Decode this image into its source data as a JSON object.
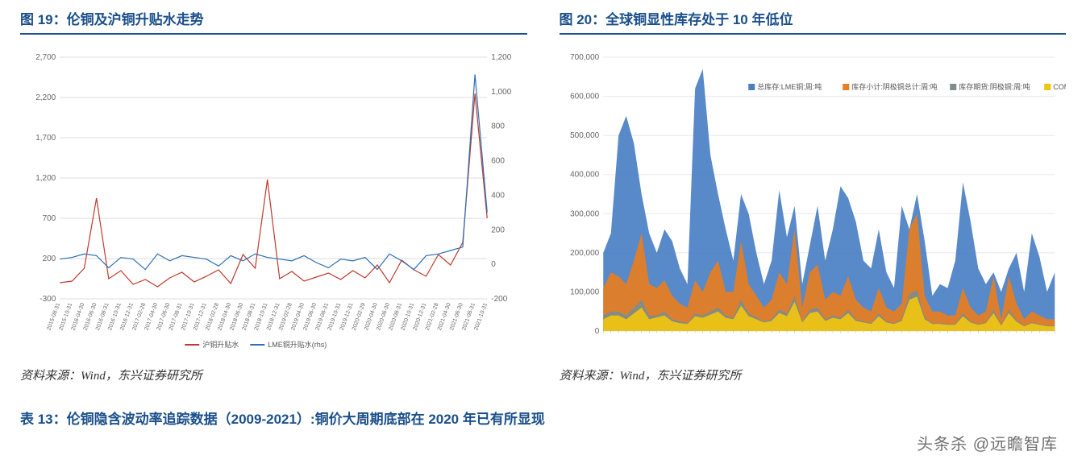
{
  "fig19": {
    "title": "图 19：伦铜及沪铜升贴水走势",
    "source": "资料来源：Wind，东兴证券研究所",
    "type": "line",
    "left_axis": {
      "min": -300,
      "max": 2700,
      "ticks": [
        -300,
        200,
        700,
        1200,
        1700,
        2200,
        2700
      ],
      "color": "#666666"
    },
    "right_axis": {
      "min": -200,
      "max": 1200,
      "ticks": [
        -200,
        0,
        200,
        400,
        600,
        800,
        1000,
        1200
      ],
      "color": "#666666"
    },
    "x_labels": [
      "2015-08-31",
      "2015-10-31",
      "2016-04-30",
      "2016-06-30",
      "2016-08-31",
      "2016-10-31",
      "2016-12-31",
      "2017-02-28",
      "2017-04-30",
      "2017-06-30",
      "2017-08-31",
      "2017-10-31",
      "2017-12-31",
      "2018-02-28",
      "2018-04-30",
      "2018-06-30",
      "2018-08-31",
      "2018-10-31",
      "2018-12-31",
      "2019-02-28",
      "2019-04-30",
      "2019-06-30",
      "2019-08-31",
      "2019-10-31",
      "2019-12-31",
      "2020-02-29",
      "2020-04-30",
      "2020-06-30",
      "2020-08-31",
      "2020-10-31",
      "2020-12-31",
      "2021-02-28",
      "2021-04-30",
      "2021-06-30",
      "2021-08-31",
      "2021-10-31"
    ],
    "series": [
      {
        "name": "沪铜升贴水",
        "color": "#c0392b",
        "axis": "left",
        "data": [
          -100,
          -80,
          80,
          950,
          -50,
          50,
          -120,
          -60,
          -150,
          -40,
          30,
          -90,
          -20,
          60,
          -110,
          250,
          80,
          1180,
          -50,
          40,
          -80,
          -30,
          20,
          -60,
          50,
          -40,
          120,
          -100,
          180,
          60,
          -20,
          250,
          120,
          400,
          2250,
          700
        ]
      },
      {
        "name": "LME铜升贴水(rhs)",
        "color": "#2e6fb4",
        "axis": "right",
        "data": [
          30,
          40,
          60,
          50,
          -20,
          40,
          30,
          -30,
          60,
          20,
          50,
          40,
          30,
          -10,
          50,
          20,
          60,
          40,
          30,
          20,
          50,
          10,
          -20,
          30,
          20,
          40,
          -30,
          60,
          20,
          -30,
          50,
          60,
          80,
          100,
          1100,
          300
        ]
      }
    ],
    "grid_color": "#dddddd",
    "legend_pos": "bottom"
  },
  "fig20": {
    "title": "图 20：全球铜显性库存处于 10 年低位",
    "source": "资料来源：Wind，东兴证券研究所",
    "type": "area",
    "y_axis": {
      "min": 0,
      "max": 700000,
      "ticks": [
        0,
        100000,
        200000,
        300000,
        400000,
        500000,
        600000,
        700000
      ],
      "color": "#888888"
    },
    "series": [
      {
        "name": "总库存:LME铜:周:吨",
        "color": "#4a7fc4",
        "data": [
          200,
          250,
          500,
          550,
          480,
          350,
          250,
          200,
          260,
          230,
          160,
          120,
          620,
          670,
          450,
          350,
          260,
          180,
          350,
          300,
          200,
          120,
          180,
          360,
          240,
          320,
          120,
          220,
          320,
          180,
          260,
          370,
          340,
          280,
          180,
          160,
          260,
          150,
          110,
          320,
          260,
          350,
          230,
          90,
          120,
          110,
          180,
          380,
          280,
          160,
          120,
          150,
          100,
          160,
          200,
          100,
          250,
          190,
          100,
          150
        ]
      },
      {
        "name": "库存小计:阴极铜总计:周:吨",
        "color": "#e67e22",
        "data": [
          110,
          150,
          140,
          120,
          180,
          250,
          120,
          110,
          130,
          90,
          70,
          60,
          130,
          100,
          150,
          180,
          100,
          100,
          230,
          120,
          90,
          60,
          80,
          150,
          120,
          260,
          60,
          150,
          170,
          80,
          100,
          90,
          140,
          80,
          60,
          50,
          110,
          60,
          50,
          70,
          260,
          300,
          90,
          50,
          50,
          40,
          40,
          110,
          60,
          40,
          50,
          140,
          30,
          140,
          70,
          30,
          50,
          40,
          30,
          30
        ]
      },
      {
        "name": "库存期货:阴极铜:周:吨",
        "color": "#7f8c8d",
        "data": [
          40,
          50,
          50,
          40,
          60,
          80,
          40,
          40,
          50,
          30,
          25,
          20,
          45,
          40,
          50,
          60,
          40,
          35,
          80,
          45,
          35,
          25,
          30,
          55,
          45,
          90,
          25,
          55,
          60,
          30,
          40,
          35,
          55,
          30,
          25,
          20,
          45,
          25,
          20,
          30,
          95,
          105,
          35,
          20,
          20,
          18,
          18,
          45,
          25,
          18,
          22,
          55,
          15,
          55,
          28,
          14,
          22,
          18,
          14,
          14
        ]
      },
      {
        "name": "COMEX:铜库存:周:短吨",
        "color": "#f1c40f",
        "data": [
          30,
          40,
          40,
          30,
          45,
          60,
          30,
          35,
          40,
          25,
          20,
          18,
          38,
          34,
          42,
          50,
          34,
          30,
          65,
          38,
          30,
          22,
          26,
          46,
          38,
          75,
          22,
          46,
          50,
          26,
          34,
          30,
          46,
          26,
          22,
          18,
          38,
          22,
          18,
          26,
          80,
          88,
          30,
          18,
          18,
          16,
          16,
          38,
          22,
          16,
          20,
          46,
          14,
          46,
          24,
          12,
          20,
          16,
          12,
          12
        ]
      }
    ],
    "grid_color": "#e8e8e8",
    "legend_pos": "top-right"
  },
  "table13": {
    "title": "表 13：伦铜隐含波动率追踪数据（2009-2021）:铜价大周期底部在 2020 年已有所显现"
  },
  "watermark": "头条杀 @远瞻智库"
}
